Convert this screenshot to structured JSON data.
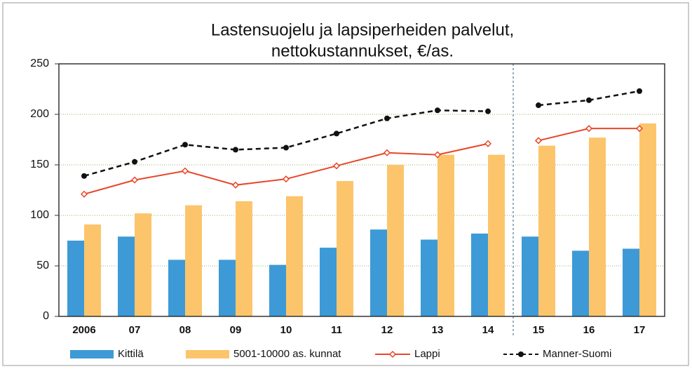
{
  "chart_data": {
    "type": "bar",
    "title": [
      "Lastensuojelu ja lapsiperheiden palvelut,",
      "nettokustannukset, €/as."
    ],
    "categories": [
      "2006",
      "07",
      "08",
      "09",
      "10",
      "11",
      "12",
      "13",
      "14",
      "15",
      "16",
      "17"
    ],
    "ylim": [
      0,
      250
    ],
    "yticks": [
      0,
      50,
      100,
      150,
      200,
      250
    ],
    "grid": true,
    "legend": "bottom",
    "series": [
      {
        "name": "Kittilä",
        "type": "bar",
        "color": "#3d9ad6",
        "values": [
          75,
          79,
          56,
          56,
          51,
          68,
          86,
          76,
          82,
          79,
          65,
          67
        ]
      },
      {
        "name": "5001-10000 as. kunnat",
        "type": "bar",
        "color": "#fcc56b",
        "values": [
          91,
          102,
          110,
          114,
          119,
          134,
          150,
          160,
          160,
          169,
          177,
          191
        ]
      },
      {
        "name": "Lappi",
        "type": "line",
        "color": "#e8462a",
        "values": [
          121,
          135,
          144,
          130,
          136,
          149,
          162,
          160,
          171,
          174,
          186,
          186
        ]
      },
      {
        "name": "Manner-Suomi",
        "type": "line",
        "color": "#111111",
        "values": [
          139,
          153,
          170,
          165,
          167,
          181,
          196,
          204,
          203,
          209,
          214,
          223
        ]
      }
    ]
  }
}
